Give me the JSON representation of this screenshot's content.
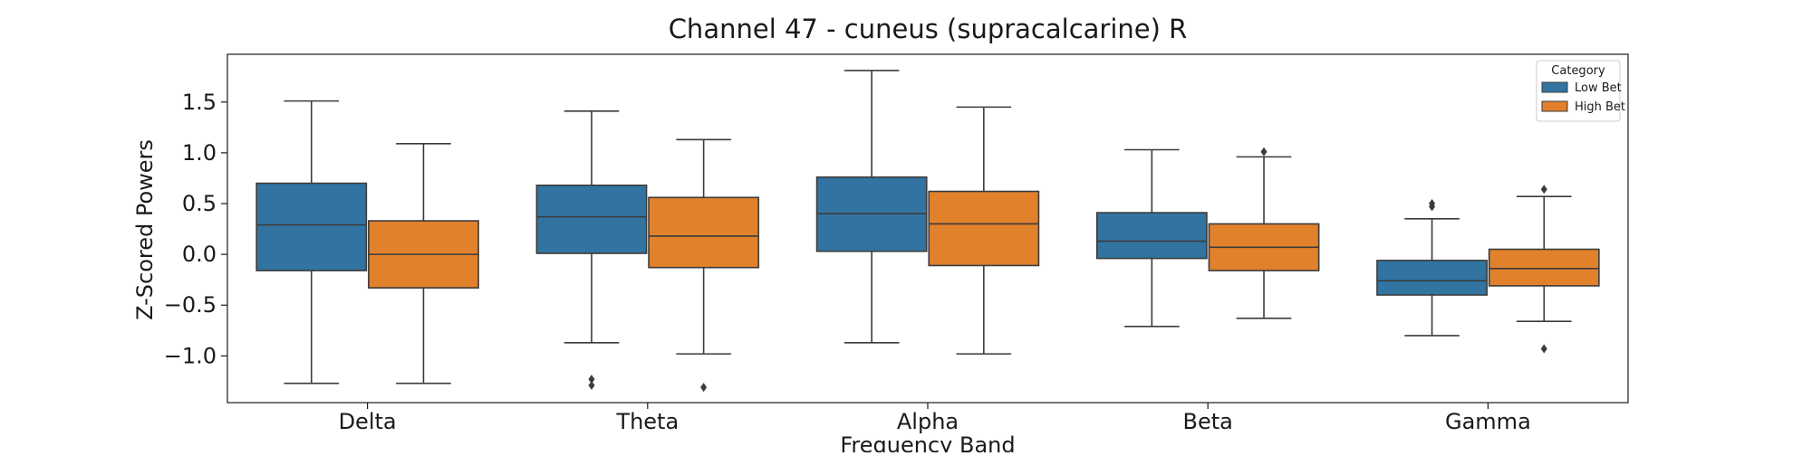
{
  "chart_data": {
    "type": "box",
    "title": "Channel 47 - cuneus (supracalcarine) R",
    "xlabel": "Frequency Band",
    "ylabel": "Z-Scored Powers",
    "categories": [
      "Delta",
      "Theta",
      "Alpha",
      "Beta",
      "Gamma"
    ],
    "ylim": [
      -1.46,
      1.97
    ],
    "yticks": [
      {
        "value": 1.5,
        "label": "1.5"
      },
      {
        "value": 1.0,
        "label": "1.0"
      },
      {
        "value": 0.5,
        "label": "0.5"
      },
      {
        "value": 0.0,
        "label": "0.0"
      },
      {
        "value": -0.5,
        "label": "−0.5"
      },
      {
        "value": -1.0,
        "label": "−1.0"
      }
    ],
    "grid": false,
    "legend": {
      "title": "Category",
      "placement": "top-right"
    },
    "series": [
      {
        "name": "Low Bet",
        "color": "#3274a1",
        "boxes": [
          {
            "whisker_low": -1.27,
            "q1": -0.16,
            "median": 0.29,
            "q3": 0.7,
            "whisker_high": 1.51,
            "outliers": []
          },
          {
            "whisker_low": -0.87,
            "q1": 0.01,
            "median": 0.37,
            "q3": 0.68,
            "whisker_high": 1.41,
            "outliers": [
              -1.23,
              -1.29
            ]
          },
          {
            "whisker_low": -0.87,
            "q1": 0.03,
            "median": 0.4,
            "q3": 0.76,
            "whisker_high": 1.81,
            "outliers": []
          },
          {
            "whisker_low": -0.71,
            "q1": -0.04,
            "median": 0.13,
            "q3": 0.41,
            "whisker_high": 1.03,
            "outliers": []
          },
          {
            "whisker_low": -0.8,
            "q1": -0.4,
            "median": -0.26,
            "q3": -0.06,
            "whisker_high": 0.35,
            "outliers": [
              0.47,
              0.5
            ]
          }
        ]
      },
      {
        "name": "High Bet",
        "color": "#e1812c",
        "boxes": [
          {
            "whisker_low": -1.27,
            "q1": -0.33,
            "median": 0.0,
            "q3": 0.33,
            "whisker_high": 1.09,
            "outliers": []
          },
          {
            "whisker_low": -0.98,
            "q1": -0.13,
            "median": 0.18,
            "q3": 0.56,
            "whisker_high": 1.13,
            "outliers": [
              -1.31
            ]
          },
          {
            "whisker_low": -0.98,
            "q1": -0.11,
            "median": 0.3,
            "q3": 0.62,
            "whisker_high": 1.45,
            "outliers": []
          },
          {
            "whisker_low": -0.63,
            "q1": -0.16,
            "median": 0.07,
            "q3": 0.3,
            "whisker_high": 0.96,
            "outliers": [
              1.01
            ]
          },
          {
            "whisker_low": -0.66,
            "q1": -0.31,
            "median": -0.14,
            "q3": 0.05,
            "whisker_high": 0.57,
            "outliers": [
              0.64,
              -0.93
            ]
          }
        ]
      }
    ]
  }
}
